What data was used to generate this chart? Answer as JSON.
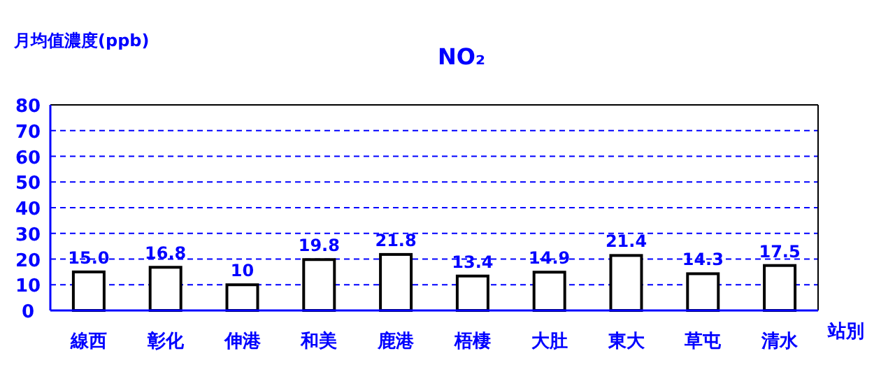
{
  "chart_data": {
    "type": "bar",
    "title": "NO₂",
    "ylabel": "月均值濃度(ppb)",
    "xlabel": "站別",
    "categories": [
      "線西",
      "彰化",
      "伸港",
      "和美",
      "鹿港",
      "梧棲",
      "大肚",
      "東大",
      "草屯",
      "清水"
    ],
    "values": [
      15.0,
      16.8,
      10,
      19.8,
      21.8,
      13.4,
      14.9,
      21.4,
      14.3,
      17.5
    ],
    "value_labels": [
      "15.0",
      "16.8",
      "10",
      "19.8",
      "21.8",
      "13.4",
      "14.9",
      "21.4",
      "14.3",
      "17.5"
    ],
    "color": "#ffffff",
    "ylim": [
      0,
      80
    ],
    "yticks": [
      0,
      10,
      20,
      30,
      40,
      50,
      60,
      70,
      80
    ],
    "grid": "y"
  }
}
